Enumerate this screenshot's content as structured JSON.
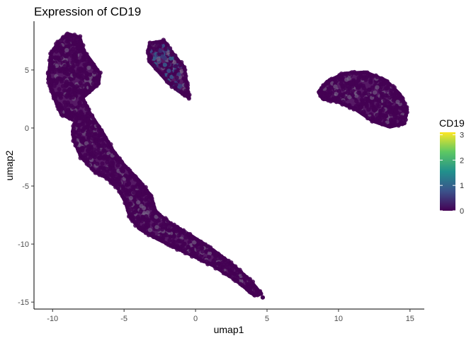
{
  "chart_data": {
    "type": "scatter",
    "title": "Expression of CD19",
    "xlabel": "umap1",
    "ylabel": "umap2",
    "xlim": [
      -11.3,
      16.0
    ],
    "ylim": [
      -15.6,
      9.2
    ],
    "xticks": [
      -10,
      -5,
      0,
      5,
      10,
      15
    ],
    "xtick_labels": [
      "-10",
      "-5",
      "0",
      "5",
      "10",
      "15"
    ],
    "yticks": [
      -15,
      -10,
      -5,
      0,
      5
    ],
    "ytick_labels": [
      "-15",
      "-10",
      "-5",
      "0",
      "5"
    ],
    "grid": false,
    "color_scale": {
      "title": "CD19",
      "min": 0,
      "max": 3.1,
      "ticks": [
        0,
        1,
        2,
        3
      ],
      "tick_labels": [
        "0",
        "1",
        "2",
        "3"
      ],
      "palette": [
        "#440154",
        "#3b528b",
        "#21908c",
        "#5dc863",
        "#fde725"
      ],
      "legend_position": "right"
    },
    "point_color_low": "#440154",
    "series": [
      {
        "type": "polygon-cluster",
        "expression_level": 0,
        "outline": [
          [
            -10.3,
            4.2
          ],
          [
            -10.0,
            3.0
          ],
          [
            -9.4,
            1.2
          ],
          [
            -8.4,
            0.6
          ],
          [
            -8.6,
            -0.3
          ],
          [
            -8.5,
            -1.1
          ],
          [
            -8.0,
            -2.5
          ],
          [
            -7.0,
            -3.8
          ],
          [
            -6.2,
            -4.3
          ],
          [
            -5.4,
            -5.2
          ],
          [
            -4.9,
            -6.4
          ],
          [
            -4.6,
            -7.6
          ],
          [
            -3.9,
            -8.7
          ],
          [
            -2.6,
            -9.6
          ],
          [
            -1.4,
            -10.3
          ],
          [
            -0.2,
            -11.0
          ],
          [
            1.3,
            -11.9
          ],
          [
            2.8,
            -13.1
          ],
          [
            4.1,
            -14.4
          ],
          [
            4.6,
            -14.3
          ],
          [
            3.8,
            -13.1
          ],
          [
            2.6,
            -11.8
          ],
          [
            1.2,
            -10.5
          ],
          [
            -0.4,
            -9.2
          ],
          [
            -1.7,
            -8.3
          ],
          [
            -2.8,
            -7.2
          ],
          [
            -3.1,
            -5.9
          ],
          [
            -3.9,
            -4.6
          ],
          [
            -5.0,
            -3.2
          ],
          [
            -5.8,
            -1.9
          ],
          [
            -6.5,
            -0.4
          ],
          [
            -7.4,
            1.3
          ],
          [
            -7.9,
            2.6
          ],
          [
            -6.8,
            3.8
          ],
          [
            -6.7,
            4.7
          ],
          [
            -7.2,
            5.6
          ],
          [
            -7.8,
            6.6
          ],
          [
            -8.1,
            7.8
          ],
          [
            -8.9,
            8.1
          ],
          [
            -9.6,
            7.4
          ],
          [
            -10.1,
            6.4
          ],
          [
            -10.2,
            5.3
          ]
        ],
        "outliers": [
          [
            4.7,
            -14.6
          ]
        ]
      },
      {
        "type": "polygon-cluster",
        "expression_level": 0.55,
        "outline": [
          [
            -3.2,
            7.3
          ],
          [
            -2.2,
            7.5
          ],
          [
            -1.7,
            6.6
          ],
          [
            -0.8,
            5.2
          ],
          [
            -0.6,
            3.6
          ],
          [
            -0.45,
            2.6
          ],
          [
            -1.2,
            3.2
          ],
          [
            -1.9,
            3.9
          ],
          [
            -2.4,
            4.6
          ],
          [
            -3.2,
            5.7
          ],
          [
            -3.3,
            6.6
          ]
        ],
        "outliers": []
      },
      {
        "type": "polygon-cluster",
        "expression_level": 0,
        "outline": [
          [
            8.6,
            3.1
          ],
          [
            9.2,
            4.0
          ],
          [
            10.4,
            4.7
          ],
          [
            11.9,
            4.8
          ],
          [
            13.3,
            4.1
          ],
          [
            14.3,
            2.9
          ],
          [
            14.8,
            1.6
          ],
          [
            14.6,
            0.4
          ],
          [
            13.6,
            0.1
          ],
          [
            12.4,
            0.6
          ],
          [
            11.2,
            1.6
          ],
          [
            9.9,
            2.3
          ],
          [
            8.9,
            2.5
          ]
        ],
        "outliers": []
      }
    ]
  }
}
